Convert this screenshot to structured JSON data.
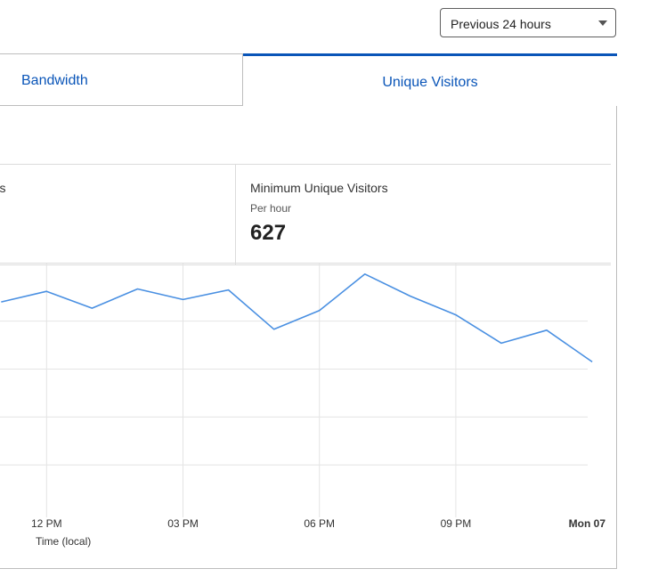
{
  "range_select": {
    "value": "Previous 24 hours"
  },
  "tabs": [
    {
      "label": "Bandwidth",
      "active": false
    },
    {
      "label": "Unique Visitors",
      "active": true
    }
  ],
  "stats": {
    "left": {
      "title": "isitors"
    },
    "right": {
      "title": "Minimum Unique Visitors",
      "subtitle": "Per hour",
      "value": "627"
    }
  },
  "colors": {
    "accent": "#0a55b8",
    "line": "#4a90e2",
    "grid": "#e4e4e4"
  },
  "chart_data": {
    "type": "line",
    "xlabel": "Time (local)",
    "ylabel": "",
    "x_ticks": [
      {
        "label": "12 PM",
        "x": 12,
        "bold": false
      },
      {
        "label": "03 PM",
        "x": 15,
        "bold": false
      },
      {
        "label": "06 PM",
        "x": 18,
        "bold": false
      },
      {
        "label": "09 PM",
        "x": 21,
        "bold": false
      },
      {
        "label": "Mon 07",
        "x": 24,
        "bold": true
      }
    ],
    "xlim": [
      11.1,
      24.3
    ],
    "ylim": [
      0,
      5.2
    ],
    "y_gridlines": [
      1,
      2,
      3,
      4
    ],
    "grid": true,
    "series": [
      {
        "x": [
          11,
          12,
          13,
          14,
          15,
          16,
          17,
          18,
          19,
          20,
          21,
          22,
          23,
          24
        ],
        "values": [
          4.4,
          4.62,
          4.27,
          4.67,
          4.45,
          4.65,
          3.83,
          4.22,
          4.98,
          4.52,
          4.13,
          3.54,
          3.81,
          3.15
        ]
      }
    ]
  }
}
